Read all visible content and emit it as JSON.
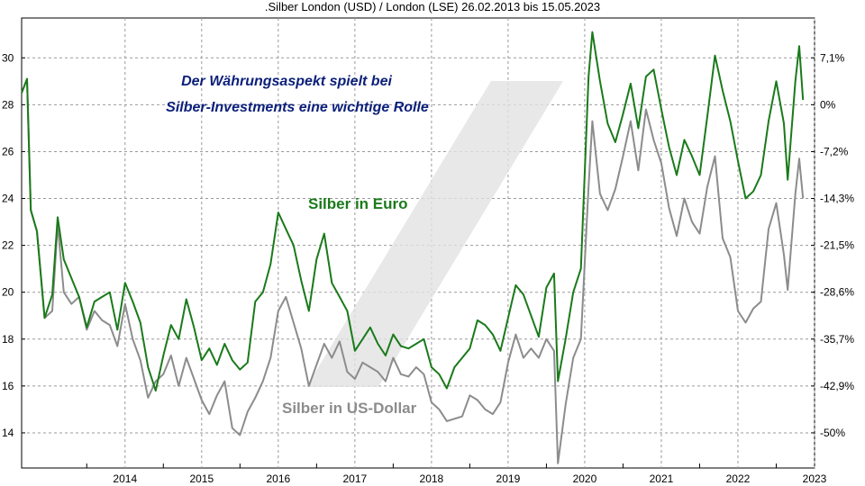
{
  "chart_data": {
    "type": "line",
    "title": ".Silber London (USD) / London (LSE) 26.02.2013 bis 15.05.2023",
    "annotation_lines": [
      "Der Währungsaspekt spielt bei",
      "Silber-Investments eine wichtige Rolle"
    ],
    "x_ticks": [
      "2014",
      "2015",
      "2016",
      "2017",
      "2018",
      "2019",
      "2020",
      "2021",
      "2022",
      "2023"
    ],
    "left_axis": {
      "ylim": [
        12.5,
        31.7
      ],
      "ticks": [
        "14",
        "16",
        "18",
        "20",
        "22",
        "24",
        "26",
        "28",
        "30"
      ]
    },
    "right_axis": {
      "ticks": [
        "7,1%",
        "0%",
        "-7,2%",
        "-14,3%",
        "-21,5%",
        "-28,6%",
        "-35,7%",
        "-42,9%",
        "-50%"
      ]
    },
    "grid": true,
    "series": [
      {
        "name": "Silber in Euro",
        "color": "#1a7a1a",
        "points": [
          [
            2013.15,
            28.5
          ],
          [
            2013.22,
            29.1
          ],
          [
            2013.27,
            23.5
          ],
          [
            2013.35,
            22.6
          ],
          [
            2013.45,
            18.9
          ],
          [
            2013.55,
            19.9
          ],
          [
            2013.62,
            23.2
          ],
          [
            2013.7,
            21.4
          ],
          [
            2013.8,
            20.6
          ],
          [
            2013.9,
            19.8
          ],
          [
            2014.0,
            18.5
          ],
          [
            2014.1,
            19.6
          ],
          [
            2014.2,
            19.8
          ],
          [
            2014.3,
            20.0
          ],
          [
            2014.4,
            18.4
          ],
          [
            2014.5,
            20.4
          ],
          [
            2014.6,
            19.6
          ],
          [
            2014.7,
            18.7
          ],
          [
            2014.8,
            16.8
          ],
          [
            2014.9,
            15.8
          ],
          [
            2015.0,
            17.3
          ],
          [
            2015.1,
            18.6
          ],
          [
            2015.2,
            18.0
          ],
          [
            2015.3,
            19.7
          ],
          [
            2015.4,
            18.5
          ],
          [
            2015.5,
            17.1
          ],
          [
            2015.6,
            17.6
          ],
          [
            2015.7,
            16.9
          ],
          [
            2015.8,
            17.8
          ],
          [
            2015.9,
            17.1
          ],
          [
            2016.0,
            16.7
          ],
          [
            2016.1,
            17.0
          ],
          [
            2016.2,
            19.6
          ],
          [
            2016.3,
            20.0
          ],
          [
            2016.4,
            21.2
          ],
          [
            2016.5,
            23.4
          ],
          [
            2016.6,
            22.7
          ],
          [
            2016.7,
            22.0
          ],
          [
            2016.8,
            20.5
          ],
          [
            2016.9,
            19.2
          ],
          [
            2017.0,
            21.4
          ],
          [
            2017.1,
            22.5
          ],
          [
            2017.2,
            20.4
          ],
          [
            2017.3,
            19.8
          ],
          [
            2017.4,
            19.2
          ],
          [
            2017.5,
            17.5
          ],
          [
            2017.6,
            18.0
          ],
          [
            2017.7,
            18.5
          ],
          [
            2017.8,
            17.8
          ],
          [
            2017.9,
            17.3
          ],
          [
            2018.0,
            18.2
          ],
          [
            2018.1,
            17.7
          ],
          [
            2018.2,
            17.6
          ],
          [
            2018.3,
            17.8
          ],
          [
            2018.4,
            18.0
          ],
          [
            2018.5,
            16.8
          ],
          [
            2018.6,
            16.5
          ],
          [
            2018.7,
            15.9
          ],
          [
            2018.8,
            16.8
          ],
          [
            2018.9,
            17.2
          ],
          [
            2019.0,
            17.6
          ],
          [
            2019.1,
            18.8
          ],
          [
            2019.2,
            18.6
          ],
          [
            2019.3,
            18.2
          ],
          [
            2019.4,
            17.5
          ],
          [
            2019.5,
            18.9
          ],
          [
            2019.6,
            20.3
          ],
          [
            2019.7,
            19.9
          ],
          [
            2019.8,
            19.0
          ],
          [
            2019.9,
            18.1
          ],
          [
            2020.0,
            20.2
          ],
          [
            2020.1,
            20.8
          ],
          [
            2020.15,
            16.2
          ],
          [
            2020.25,
            18.0
          ],
          [
            2020.35,
            20.0
          ],
          [
            2020.45,
            21.0
          ],
          [
            2020.55,
            29.2
          ],
          [
            2020.6,
            31.1
          ],
          [
            2020.7,
            29.0
          ],
          [
            2020.8,
            27.2
          ],
          [
            2020.9,
            26.4
          ],
          [
            2021.0,
            27.6
          ],
          [
            2021.1,
            28.9
          ],
          [
            2021.2,
            27.0
          ],
          [
            2021.3,
            29.2
          ],
          [
            2021.4,
            29.5
          ],
          [
            2021.5,
            27.8
          ],
          [
            2021.6,
            26.2
          ],
          [
            2021.7,
            25.0
          ],
          [
            2021.8,
            26.5
          ],
          [
            2021.9,
            25.8
          ],
          [
            2022.0,
            25.0
          ],
          [
            2022.1,
            27.5
          ],
          [
            2022.2,
            30.1
          ],
          [
            2022.3,
            28.6
          ],
          [
            2022.4,
            27.3
          ],
          [
            2022.5,
            25.6
          ],
          [
            2022.6,
            24.0
          ],
          [
            2022.7,
            24.3
          ],
          [
            2022.8,
            25.0
          ],
          [
            2022.9,
            27.3
          ],
          [
            2023.0,
            29.0
          ],
          [
            2023.1,
            27.2
          ],
          [
            2023.15,
            24.8
          ],
          [
            2023.25,
            29.0
          ],
          [
            2023.3,
            30.5
          ],
          [
            2023.35,
            28.2
          ]
        ]
      },
      {
        "name": "Silber in US-Dollar",
        "color": "#8c8c8c",
        "points": [
          [
            2013.15,
            28.5
          ],
          [
            2013.22,
            29.1
          ],
          [
            2013.27,
            23.5
          ],
          [
            2013.35,
            22.6
          ],
          [
            2013.45,
            18.9
          ],
          [
            2013.55,
            19.2
          ],
          [
            2013.62,
            22.9
          ],
          [
            2013.7,
            20.0
          ],
          [
            2013.8,
            19.5
          ],
          [
            2013.9,
            19.8
          ],
          [
            2014.0,
            18.4
          ],
          [
            2014.1,
            19.2
          ],
          [
            2014.2,
            18.8
          ],
          [
            2014.3,
            18.6
          ],
          [
            2014.4,
            17.7
          ],
          [
            2014.5,
            19.5
          ],
          [
            2014.6,
            18.0
          ],
          [
            2014.7,
            17.1
          ],
          [
            2014.8,
            15.5
          ],
          [
            2014.9,
            16.2
          ],
          [
            2015.0,
            16.5
          ],
          [
            2015.1,
            17.3
          ],
          [
            2015.2,
            16.0
          ],
          [
            2015.3,
            17.2
          ],
          [
            2015.4,
            16.3
          ],
          [
            2015.5,
            15.4
          ],
          [
            2015.6,
            14.8
          ],
          [
            2015.7,
            15.6
          ],
          [
            2015.8,
            16.2
          ],
          [
            2015.9,
            14.2
          ],
          [
            2016.0,
            13.9
          ],
          [
            2016.1,
            14.9
          ],
          [
            2016.2,
            15.5
          ],
          [
            2016.3,
            16.2
          ],
          [
            2016.4,
            17.2
          ],
          [
            2016.5,
            19.2
          ],
          [
            2016.6,
            19.8
          ],
          [
            2016.7,
            18.7
          ],
          [
            2016.8,
            17.6
          ],
          [
            2016.9,
            16.0
          ],
          [
            2017.0,
            16.9
          ],
          [
            2017.1,
            17.8
          ],
          [
            2017.2,
            17.2
          ],
          [
            2017.3,
            17.9
          ],
          [
            2017.4,
            16.6
          ],
          [
            2017.5,
            16.3
          ],
          [
            2017.6,
            17.0
          ],
          [
            2017.7,
            16.8
          ],
          [
            2017.8,
            16.6
          ],
          [
            2017.9,
            16.2
          ],
          [
            2018.0,
            17.2
          ],
          [
            2018.1,
            16.5
          ],
          [
            2018.2,
            16.4
          ],
          [
            2018.3,
            16.8
          ],
          [
            2018.4,
            16.5
          ],
          [
            2018.5,
            15.3
          ],
          [
            2018.6,
            15.0
          ],
          [
            2018.7,
            14.5
          ],
          [
            2018.8,
            14.6
          ],
          [
            2018.9,
            14.7
          ],
          [
            2019.0,
            15.6
          ],
          [
            2019.1,
            15.4
          ],
          [
            2019.2,
            15.0
          ],
          [
            2019.3,
            14.8
          ],
          [
            2019.4,
            15.3
          ],
          [
            2019.5,
            17.0
          ],
          [
            2019.6,
            18.2
          ],
          [
            2019.7,
            17.2
          ],
          [
            2019.8,
            17.6
          ],
          [
            2019.9,
            17.2
          ],
          [
            2020.0,
            18.0
          ],
          [
            2020.1,
            17.5
          ],
          [
            2020.15,
            12.7
          ],
          [
            2020.25,
            15.2
          ],
          [
            2020.35,
            17.2
          ],
          [
            2020.45,
            18.0
          ],
          [
            2020.55,
            24.5
          ],
          [
            2020.6,
            27.3
          ],
          [
            2020.7,
            24.2
          ],
          [
            2020.8,
            23.5
          ],
          [
            2020.9,
            24.4
          ],
          [
            2021.0,
            25.8
          ],
          [
            2021.1,
            27.3
          ],
          [
            2021.2,
            25.2
          ],
          [
            2021.3,
            27.8
          ],
          [
            2021.4,
            26.5
          ],
          [
            2021.5,
            25.5
          ],
          [
            2021.6,
            23.6
          ],
          [
            2021.7,
            22.4
          ],
          [
            2021.8,
            24.0
          ],
          [
            2021.9,
            23.0
          ],
          [
            2022.0,
            22.5
          ],
          [
            2022.1,
            24.5
          ],
          [
            2022.2,
            25.8
          ],
          [
            2022.3,
            22.3
          ],
          [
            2022.4,
            21.5
          ],
          [
            2022.5,
            19.2
          ],
          [
            2022.6,
            18.7
          ],
          [
            2022.7,
            19.3
          ],
          [
            2022.8,
            19.6
          ],
          [
            2022.9,
            22.7
          ],
          [
            2023.0,
            23.8
          ],
          [
            2023.1,
            21.6
          ],
          [
            2023.15,
            20.1
          ],
          [
            2023.25,
            24.2
          ],
          [
            2023.3,
            25.7
          ],
          [
            2023.35,
            24.0
          ]
        ]
      }
    ]
  }
}
